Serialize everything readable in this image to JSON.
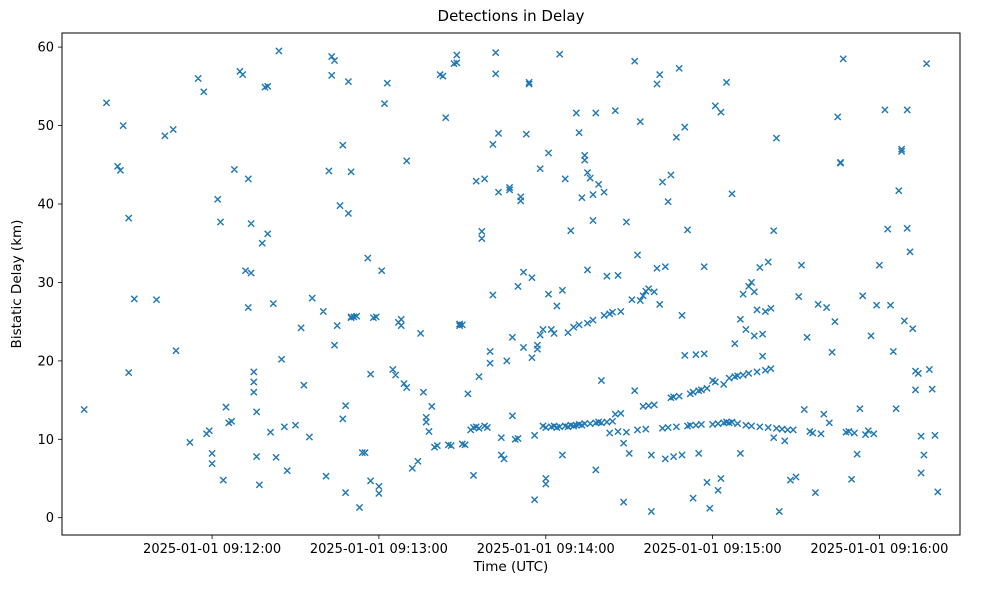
{
  "chart_data": {
    "type": "scatter",
    "title": "Detections in Delay",
    "xlabel": "Time (UTC)",
    "ylabel": "Bistatic Delay (km)",
    "marker": "x",
    "color": "#1f77b4",
    "grid": false,
    "legend": "none",
    "x_time_base": "2025-01-01 09:11:00",
    "x_unit": "seconds after 2025-01-01 09:11:00 UTC",
    "xlim_seconds": [
      6,
      329
    ],
    "ylim": [
      -2.2,
      61.8
    ],
    "y_ticks": [
      0,
      10,
      20,
      30,
      40,
      50,
      60
    ],
    "x_ticks": [
      {
        "seconds": 60,
        "label": "2025-01-01 09:12:00"
      },
      {
        "seconds": 120,
        "label": "2025-01-01 09:13:00"
      },
      {
        "seconds": 180,
        "label": "2025-01-01 09:14:00"
      },
      {
        "seconds": 240,
        "label": "2025-01-01 09:15:00"
      },
      {
        "seconds": 300,
        "label": "2025-01-01 09:16:00"
      }
    ],
    "points": [
      [
        14,
        13.8
      ],
      [
        22,
        52.9
      ],
      [
        26,
        44.8
      ],
      [
        27,
        44.3
      ],
      [
        28,
        50.0
      ],
      [
        30,
        38.2
      ],
      [
        30,
        18.5
      ],
      [
        32,
        27.9
      ],
      [
        40,
        27.8
      ],
      [
        43,
        48.7
      ],
      [
        46,
        49.5
      ],
      [
        47,
        21.3
      ],
      [
        52,
        9.6
      ],
      [
        55,
        56.0
      ],
      [
        57,
        54.3
      ],
      [
        58,
        10.7
      ],
      [
        59,
        11.1
      ],
      [
        60,
        8.2
      ],
      [
        60,
        6.9
      ],
      [
        62,
        40.6
      ],
      [
        63,
        37.7
      ],
      [
        64,
        4.8
      ],
      [
        65,
        14.1
      ],
      [
        66,
        12.1
      ],
      [
        67,
        12.3
      ],
      [
        68,
        44.4
      ],
      [
        70,
        56.9
      ],
      [
        71,
        56.5
      ],
      [
        72,
        31.5
      ],
      [
        73,
        43.2
      ],
      [
        73,
        26.8
      ],
      [
        74,
        37.5
      ],
      [
        74,
        31.2
      ],
      [
        75,
        18.6
      ],
      [
        75,
        17.3
      ],
      [
        75,
        16.0
      ],
      [
        76,
        13.5
      ],
      [
        76,
        7.8
      ],
      [
        77,
        4.2
      ],
      [
        78,
        35.0
      ],
      [
        79,
        54.9
      ],
      [
        80,
        55.0
      ],
      [
        80,
        36.2
      ],
      [
        81,
        10.9
      ],
      [
        82,
        27.3
      ],
      [
        83,
        7.7
      ],
      [
        84,
        59.5
      ],
      [
        85,
        20.2
      ],
      [
        86,
        11.6
      ],
      [
        87,
        6.0
      ],
      [
        90,
        11.8
      ],
      [
        92,
        24.2
      ],
      [
        93,
        16.9
      ],
      [
        95,
        10.3
      ],
      [
        96,
        28.0
      ],
      [
        100,
        26.3
      ],
      [
        101,
        5.3
      ],
      [
        102,
        44.2
      ],
      [
        103,
        56.4
      ],
      [
        103,
        58.8
      ],
      [
        104,
        58.3
      ],
      [
        104,
        22.0
      ],
      [
        105,
        24.5
      ],
      [
        106,
        39.8
      ],
      [
        107,
        47.5
      ],
      [
        107,
        12.6
      ],
      [
        108,
        14.3
      ],
      [
        108,
        3.2
      ],
      [
        109,
        55.6
      ],
      [
        109,
        38.8
      ],
      [
        110,
        44.1
      ],
      [
        110,
        25.6
      ],
      [
        110,
        25.5
      ],
      [
        111,
        25.6
      ],
      [
        112,
        25.7
      ],
      [
        113,
        1.3
      ],
      [
        114,
        8.3
      ],
      [
        115,
        8.3
      ],
      [
        116,
        33.1
      ],
      [
        117,
        18.3
      ],
      [
        117,
        4.7
      ],
      [
        118,
        25.5
      ],
      [
        119,
        25.6
      ],
      [
        120,
        4.0
      ],
      [
        120,
        3.1
      ],
      [
        121,
        31.5
      ],
      [
        122,
        52.8
      ],
      [
        123,
        55.4
      ],
      [
        125,
        18.9
      ],
      [
        126,
        18.2
      ],
      [
        127,
        24.9
      ],
      [
        128,
        25.3
      ],
      [
        128,
        24.5
      ],
      [
        129,
        17.1
      ],
      [
        130,
        16.6
      ],
      [
        130,
        45.5
      ],
      [
        132,
        6.3
      ],
      [
        134,
        7.2
      ],
      [
        135,
        23.5
      ],
      [
        136,
        16.0
      ],
      [
        137,
        12.8
      ],
      [
        137,
        12.2
      ],
      [
        138,
        11.0
      ],
      [
        139,
        14.2
      ],
      [
        140,
        9.0
      ],
      [
        141,
        9.2
      ],
      [
        142,
        56.5
      ],
      [
        143,
        56.3
      ],
      [
        144,
        51.0
      ],
      [
        145,
        9.3
      ],
      [
        146,
        9.2
      ],
      [
        147,
        57.9
      ],
      [
        148,
        59.0
      ],
      [
        148,
        58.0
      ],
      [
        149,
        24.5
      ],
      [
        149,
        24.7
      ],
      [
        150,
        24.6
      ],
      [
        150,
        9.4
      ],
      [
        151,
        9.3
      ],
      [
        152,
        15.8
      ],
      [
        153,
        11.2
      ],
      [
        154,
        11.5
      ],
      [
        154,
        5.4
      ],
      [
        155,
        11.6
      ],
      [
        155,
        42.9
      ],
      [
        156,
        11.4
      ],
      [
        156,
        18.0
      ],
      [
        157,
        36.5
      ],
      [
        157,
        35.6
      ],
      [
        158,
        43.2
      ],
      [
        158,
        11.7
      ],
      [
        159,
        11.5
      ],
      [
        160,
        21.2
      ],
      [
        160,
        19.7
      ],
      [
        161,
        47.6
      ],
      [
        161,
        28.4
      ],
      [
        162,
        56.6
      ],
      [
        162,
        59.3
      ],
      [
        163,
        49.0
      ],
      [
        163,
        41.5
      ],
      [
        164,
        10.2
      ],
      [
        164,
        8.0
      ],
      [
        165,
        7.5
      ],
      [
        166,
        20.0
      ],
      [
        167,
        42.1
      ],
      [
        167,
        41.8
      ],
      [
        168,
        23.0
      ],
      [
        168,
        13.0
      ],
      [
        169,
        10.0
      ],
      [
        170,
        29.5
      ],
      [
        170,
        10.1
      ],
      [
        171,
        40.9
      ],
      [
        171,
        40.4
      ],
      [
        172,
        31.3
      ],
      [
        172,
        21.7
      ],
      [
        173,
        48.9
      ],
      [
        174,
        55.5
      ],
      [
        174,
        55.3
      ],
      [
        175,
        30.6
      ],
      [
        175,
        20.4
      ],
      [
        176,
        10.5
      ],
      [
        176,
        2.3
      ],
      [
        177,
        22.0
      ],
      [
        177,
        21.5
      ],
      [
        178,
        44.5
      ],
      [
        178,
        23.3
      ],
      [
        179,
        24.0
      ],
      [
        179,
        11.7
      ],
      [
        180,
        11.5
      ],
      [
        180,
        5.0
      ],
      [
        180,
        4.3
      ],
      [
        181,
        46.5
      ],
      [
        181,
        28.5
      ],
      [
        182,
        24.0
      ],
      [
        182,
        11.6
      ],
      [
        183,
        23.5
      ],
      [
        183,
        11.7
      ],
      [
        184,
        27.0
      ],
      [
        184,
        11.5
      ],
      [
        185,
        59.1
      ],
      [
        185,
        11.6
      ],
      [
        186,
        29.0
      ],
      [
        186,
        8.0
      ],
      [
        187,
        43.2
      ],
      [
        187,
        11.7
      ],
      [
        188,
        23.6
      ],
      [
        188,
        11.6
      ],
      [
        189,
        36.6
      ],
      [
        189,
        11.8
      ],
      [
        190,
        24.3
      ],
      [
        190,
        11.7
      ],
      [
        191,
        51.6
      ],
      [
        191,
        11.8
      ],
      [
        192,
        49.1
      ],
      [
        192,
        24.6
      ],
      [
        192,
        11.9
      ],
      [
        193,
        40.8
      ],
      [
        193,
        11.8
      ],
      [
        194,
        45.6
      ],
      [
        194,
        46.2
      ],
      [
        194,
        12.0
      ],
      [
        195,
        44.0
      ],
      [
        195,
        31.6
      ],
      [
        195,
        24.8
      ],
      [
        196,
        43.3
      ],
      [
        196,
        12.0
      ],
      [
        197,
        41.2
      ],
      [
        197,
        37.9
      ],
      [
        197,
        25.2
      ],
      [
        198,
        51.6
      ],
      [
        198,
        12.1
      ],
      [
        198,
        6.1
      ],
      [
        199,
        42.5
      ],
      [
        199,
        12.2
      ],
      [
        200,
        17.5
      ],
      [
        200,
        12.1
      ],
      [
        201,
        41.5
      ],
      [
        201,
        25.8
      ],
      [
        202,
        30.8
      ],
      [
        202,
        12.2
      ],
      [
        203,
        26.0
      ],
      [
        203,
        10.8
      ],
      [
        204,
        26.2
      ],
      [
        204,
        12.3
      ],
      [
        205,
        51.9
      ],
      [
        205,
        13.2
      ],
      [
        206,
        30.9
      ],
      [
        206,
        11.0
      ],
      [
        207,
        26.3
      ],
      [
        207,
        13.3
      ],
      [
        208,
        9.5
      ],
      [
        208,
        2.0
      ],
      [
        209,
        37.7
      ],
      [
        209,
        10.9
      ],
      [
        210,
        8.2
      ],
      [
        211,
        27.8
      ],
      [
        212,
        58.2
      ],
      [
        212,
        16.2
      ],
      [
        213,
        33.5
      ],
      [
        213,
        11.2
      ],
      [
        214,
        50.5
      ],
      [
        214,
        27.7
      ],
      [
        215,
        28.3
      ],
      [
        215,
        14.2
      ],
      [
        216,
        28.9
      ],
      [
        216,
        11.3
      ],
      [
        217,
        29.2
      ],
      [
        217,
        14.3
      ],
      [
        218,
        8.0
      ],
      [
        218,
        0.8
      ],
      [
        219,
        28.8
      ],
      [
        219,
        14.4
      ],
      [
        220,
        55.3
      ],
      [
        220,
        31.8
      ],
      [
        221,
        56.5
      ],
      [
        221,
        27.2
      ],
      [
        222,
        42.8
      ],
      [
        222,
        11.4
      ],
      [
        223,
        32.0
      ],
      [
        223,
        7.5
      ],
      [
        224,
        40.3
      ],
      [
        224,
        11.5
      ],
      [
        225,
        43.7
      ],
      [
        225,
        15.3
      ],
      [
        226,
        15.4
      ],
      [
        226,
        7.8
      ],
      [
        227,
        48.5
      ],
      [
        227,
        11.6
      ],
      [
        228,
        57.3
      ],
      [
        228,
        15.5
      ],
      [
        229,
        25.8
      ],
      [
        229,
        8.0
      ],
      [
        230,
        49.8
      ],
      [
        230,
        20.7
      ],
      [
        231,
        36.7
      ],
      [
        231,
        11.7
      ],
      [
        232,
        15.8
      ],
      [
        232,
        11.8
      ],
      [
        233,
        16.0
      ],
      [
        233,
        2.5
      ],
      [
        234,
        20.8
      ],
      [
        234,
        11.8
      ],
      [
        235,
        16.2
      ],
      [
        235,
        8.2
      ],
      [
        236,
        16.3
      ],
      [
        236,
        11.9
      ],
      [
        237,
        32.0
      ],
      [
        237,
        20.9
      ],
      [
        238,
        16.5
      ],
      [
        238,
        4.5
      ],
      [
        239,
        1.2
      ],
      [
        240,
        17.5
      ],
      [
        240,
        11.9
      ],
      [
        241,
        52.5
      ],
      [
        241,
        17.3
      ],
      [
        242,
        3.5
      ],
      [
        242,
        12.0
      ],
      [
        243,
        51.7
      ],
      [
        243,
        5.0
      ],
      [
        244,
        17.0
      ],
      [
        244,
        12.1
      ],
      [
        245,
        55.5
      ],
      [
        245,
        12.2
      ],
      [
        246,
        17.8
      ],
      [
        246,
        12.1
      ],
      [
        247,
        41.3
      ],
      [
        247,
        12.2
      ],
      [
        248,
        22.2
      ],
      [
        248,
        18.0
      ],
      [
        249,
        18.1
      ],
      [
        249,
        12.0
      ],
      [
        250,
        25.3
      ],
      [
        250,
        8.2
      ],
      [
        251,
        28.5
      ],
      [
        251,
        18.2
      ],
      [
        252,
        24.0
      ],
      [
        252,
        11.8
      ],
      [
        253,
        29.5
      ],
      [
        253,
        18.4
      ],
      [
        254,
        30.0
      ],
      [
        254,
        11.7
      ],
      [
        255,
        28.8
      ],
      [
        255,
        23.2
      ],
      [
        256,
        26.5
      ],
      [
        256,
        18.6
      ],
      [
        257,
        31.9
      ],
      [
        257,
        11.6
      ],
      [
        258,
        20.6
      ],
      [
        258,
        23.4
      ],
      [
        259,
        26.3
      ],
      [
        259,
        18.8
      ],
      [
        260,
        32.6
      ],
      [
        260,
        11.5
      ],
      [
        261,
        26.7
      ],
      [
        261,
        19.0
      ],
      [
        262,
        36.6
      ],
      [
        262,
        10.2
      ],
      [
        263,
        48.4
      ],
      [
        263,
        11.4
      ],
      [
        264,
        0.8
      ],
      [
        265,
        11.3
      ],
      [
        266,
        9.8
      ],
      [
        267,
        11.2
      ],
      [
        268,
        4.8
      ],
      [
        269,
        11.2
      ],
      [
        270,
        5.2
      ],
      [
        271,
        28.2
      ],
      [
        272,
        32.2
      ],
      [
        273,
        13.8
      ],
      [
        274,
        23.0
      ],
      [
        275,
        11.0
      ],
      [
        276,
        10.8
      ],
      [
        277,
        3.2
      ],
      [
        278,
        27.2
      ],
      [
        279,
        10.7
      ],
      [
        280,
        13.2
      ],
      [
        281,
        26.8
      ],
      [
        282,
        12.1
      ],
      [
        283,
        21.1
      ],
      [
        284,
        25.0
      ],
      [
        285,
        51.1
      ],
      [
        286,
        45.2
      ],
      [
        286,
        45.3
      ],
      [
        287,
        58.5
      ],
      [
        288,
        10.9
      ],
      [
        289,
        11.0
      ],
      [
        290,
        4.9
      ],
      [
        291,
        10.8
      ],
      [
        292,
        8.1
      ],
      [
        293,
        13.9
      ],
      [
        294,
        28.3
      ],
      [
        295,
        10.6
      ],
      [
        296,
        11.1
      ],
      [
        297,
        23.2
      ],
      [
        298,
        10.7
      ],
      [
        299,
        27.1
      ],
      [
        300,
        32.2
      ],
      [
        302,
        52.0
      ],
      [
        303,
        36.8
      ],
      [
        304,
        27.1
      ],
      [
        305,
        21.2
      ],
      [
        306,
        13.9
      ],
      [
        307,
        41.7
      ],
      [
        308,
        47.0
      ],
      [
        308,
        46.7
      ],
      [
        309,
        25.1
      ],
      [
        310,
        52.0
      ],
      [
        310,
        36.9
      ],
      [
        311,
        33.9
      ],
      [
        312,
        24.1
      ],
      [
        313,
        16.3
      ],
      [
        313,
        18.7
      ],
      [
        314,
        18.4
      ],
      [
        315,
        10.4
      ],
      [
        315,
        5.7
      ],
      [
        316,
        8.0
      ],
      [
        317,
        57.9
      ],
      [
        318,
        18.9
      ],
      [
        319,
        16.4
      ],
      [
        320,
        10.5
      ],
      [
        321,
        3.3
      ]
    ]
  }
}
